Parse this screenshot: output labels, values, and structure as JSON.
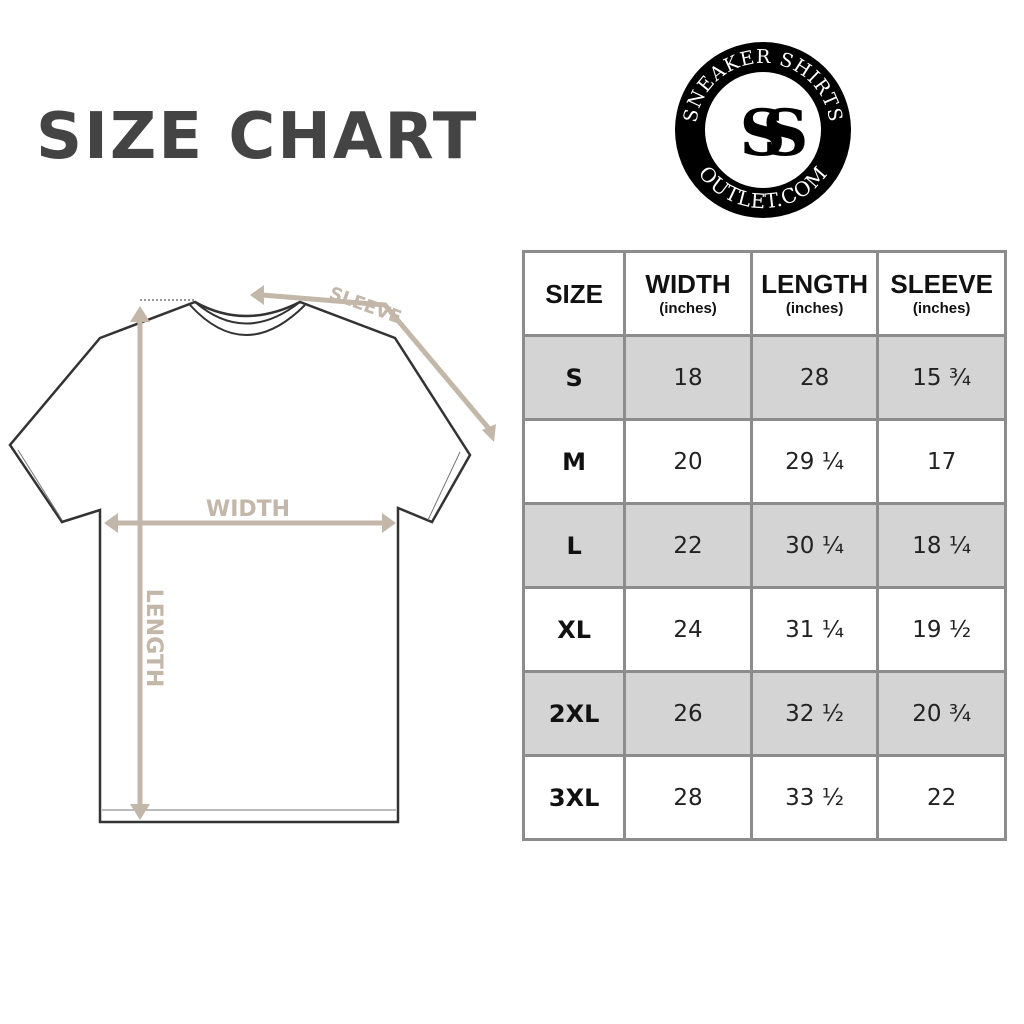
{
  "title": "SIZE CHART",
  "logo": {
    "top_text": "SNEAKER SHIRTS",
    "bottom_text": "OUTLET.COM",
    "monogram": "SS"
  },
  "diagram": {
    "sleeve_label": "SLEEVE",
    "width_label": "WIDTH",
    "length_label": "LENGTH",
    "accent_color": "#c2b7a8"
  },
  "chart_data": {
    "type": "table",
    "columns": [
      {
        "label": "SIZE",
        "unit": ""
      },
      {
        "label": "WIDTH",
        "unit": "(inches)"
      },
      {
        "label": "LENGTH",
        "unit": "(inches)"
      },
      {
        "label": "SLEEVE",
        "unit": "(inches)"
      }
    ],
    "rows": [
      [
        "S",
        "18",
        "28",
        "15 ¾"
      ],
      [
        "M",
        "20",
        "29 ¼",
        "17"
      ],
      [
        "L",
        "22",
        "30 ¼",
        "18 ¼"
      ],
      [
        "XL",
        "24",
        "31 ¼",
        "19 ½"
      ],
      [
        "2XL",
        "26",
        "32 ½",
        "20 ¾"
      ],
      [
        "3XL",
        "28",
        "33 ½",
        "22"
      ]
    ],
    "stripe_color": "#d4d4d4",
    "border_color": "#8c8c8c"
  }
}
